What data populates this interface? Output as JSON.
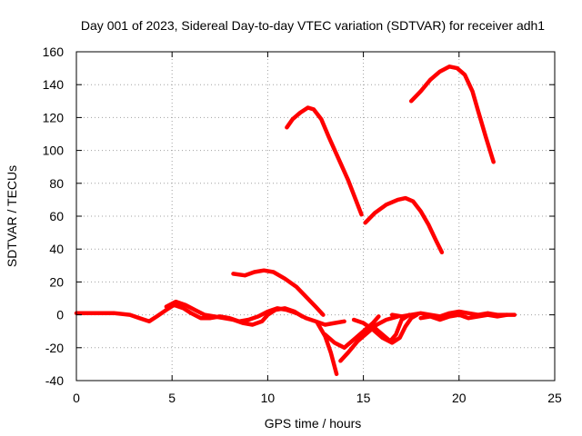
{
  "chart_data": {
    "type": "line",
    "title": "Day 001 of 2023, Sidereal Day-to-day VTEC variation (SDTVAR) for receiver adh1",
    "xlabel": "GPS time / hours",
    "ylabel": "SDTVAR / TECUs",
    "xlim": [
      0,
      25
    ],
    "ylim": [
      -40,
      160
    ],
    "xticks": [
      0,
      5,
      10,
      15,
      20,
      25
    ],
    "yticks": [
      -40,
      -20,
      0,
      20,
      40,
      60,
      80,
      100,
      120,
      140,
      160
    ],
    "grid": true,
    "color": "#ff0000",
    "series": [
      {
        "name": "arc-high-1",
        "points": [
          [
            11.0,
            114
          ],
          [
            11.3,
            119
          ],
          [
            11.7,
            123
          ],
          [
            12.1,
            126
          ],
          [
            12.4,
            125
          ],
          [
            12.8,
            119
          ],
          [
            13.2,
            108
          ],
          [
            13.7,
            95
          ],
          [
            14.2,
            82
          ],
          [
            14.6,
            70
          ],
          [
            14.9,
            61
          ]
        ]
      },
      {
        "name": "arc-high-2",
        "points": [
          [
            15.1,
            56
          ],
          [
            15.6,
            62
          ],
          [
            16.2,
            67
          ],
          [
            16.8,
            70
          ],
          [
            17.2,
            71
          ],
          [
            17.6,
            69
          ],
          [
            18.0,
            63
          ],
          [
            18.4,
            55
          ],
          [
            18.8,
            45
          ],
          [
            19.1,
            38
          ]
        ]
      },
      {
        "name": "arc-high-3",
        "points": [
          [
            17.5,
            130
          ],
          [
            18.0,
            136
          ],
          [
            18.5,
            143
          ],
          [
            19.0,
            148
          ],
          [
            19.5,
            151
          ],
          [
            19.9,
            150
          ],
          [
            20.3,
            146
          ],
          [
            20.7,
            136
          ],
          [
            21.0,
            124
          ],
          [
            21.4,
            108
          ],
          [
            21.8,
            93
          ]
        ]
      },
      {
        "name": "arc-mid",
        "points": [
          [
            8.2,
            25
          ],
          [
            8.8,
            24
          ],
          [
            9.3,
            26
          ],
          [
            9.8,
            27
          ],
          [
            10.3,
            26
          ],
          [
            10.9,
            22
          ],
          [
            11.5,
            17
          ],
          [
            12.0,
            11
          ],
          [
            12.5,
            5
          ],
          [
            12.9,
            0
          ]
        ]
      },
      {
        "name": "base-1",
        "points": [
          [
            0.0,
            1
          ],
          [
            1.0,
            1
          ],
          [
            2.0,
            1
          ],
          [
            2.8,
            0
          ],
          [
            3.3,
            -2
          ],
          [
            3.8,
            -4
          ],
          [
            4.2,
            -1
          ],
          [
            4.7,
            3
          ],
          [
            5.1,
            6
          ],
          [
            5.6,
            4
          ],
          [
            6.0,
            1
          ],
          [
            6.5,
            -2
          ],
          [
            7.0,
            -2
          ],
          [
            7.5,
            -1
          ],
          [
            8.0,
            -2
          ],
          [
            8.5,
            -4
          ],
          [
            9.0,
            -3
          ],
          [
            9.5,
            -1
          ],
          [
            10.0,
            2
          ],
          [
            10.5,
            4
          ],
          [
            11.0,
            3
          ],
          [
            11.5,
            1
          ],
          [
            12.0,
            -2
          ],
          [
            12.5,
            -4
          ],
          [
            13.0,
            -6
          ],
          [
            13.5,
            -5
          ],
          [
            14.0,
            -4
          ]
        ]
      },
      {
        "name": "base-2",
        "points": [
          [
            4.7,
            5
          ],
          [
            5.2,
            8
          ],
          [
            5.7,
            6
          ],
          [
            6.2,
            3
          ],
          [
            6.7,
            0
          ],
          [
            7.2,
            -1
          ],
          [
            7.7,
            -2
          ],
          [
            8.2,
            -3
          ],
          [
            8.7,
            -5
          ],
          [
            9.2,
            -6
          ],
          [
            9.7,
            -4
          ],
          [
            10.0,
            0
          ],
          [
            10.4,
            3
          ],
          [
            10.9,
            4
          ],
          [
            11.4,
            2
          ],
          [
            11.8,
            -1
          ]
        ]
      },
      {
        "name": "dip-1",
        "points": [
          [
            12.6,
            -5
          ],
          [
            13.0,
            -13
          ],
          [
            13.3,
            -23
          ],
          [
            13.6,
            -36
          ]
        ]
      },
      {
        "name": "dip-2",
        "points": [
          [
            13.0,
            -12
          ],
          [
            13.5,
            -17
          ],
          [
            14.0,
            -20
          ],
          [
            14.5,
            -15
          ],
          [
            15.0,
            -10
          ],
          [
            15.5,
            -5
          ],
          [
            15.8,
            -1
          ]
        ]
      },
      {
        "name": "dip-3",
        "points": [
          [
            13.8,
            -28
          ],
          [
            14.2,
            -23
          ],
          [
            14.7,
            -16
          ],
          [
            15.2,
            -11
          ],
          [
            15.7,
            -6
          ],
          [
            16.2,
            -3
          ],
          [
            16.8,
            -1
          ]
        ]
      },
      {
        "name": "dip-4",
        "points": [
          [
            14.5,
            -3
          ],
          [
            15.0,
            -5
          ],
          [
            15.5,
            -9
          ],
          [
            16.0,
            -14
          ],
          [
            16.5,
            -17
          ],
          [
            16.9,
            -14
          ],
          [
            17.2,
            -7
          ],
          [
            17.5,
            -2
          ],
          [
            17.8,
            0
          ]
        ]
      },
      {
        "name": "dip-5",
        "points": [
          [
            15.5,
            -7
          ],
          [
            16.0,
            -12
          ],
          [
            16.4,
            -16
          ],
          [
            16.7,
            -12
          ],
          [
            17.0,
            -3
          ],
          [
            17.4,
            0
          ]
        ]
      },
      {
        "name": "base-3",
        "points": [
          [
            16.5,
            0
          ],
          [
            17.0,
            -1
          ],
          [
            17.5,
            0
          ],
          [
            18.0,
            1
          ],
          [
            18.5,
            0
          ],
          [
            19.0,
            -1
          ],
          [
            19.5,
            1
          ],
          [
            20.0,
            2
          ],
          [
            20.5,
            1
          ],
          [
            21.0,
            0
          ],
          [
            21.5,
            1
          ],
          [
            22.0,
            0
          ],
          [
            22.5,
            0
          ],
          [
            22.9,
            0
          ]
        ]
      },
      {
        "name": "base-4",
        "points": [
          [
            18.0,
            -2
          ],
          [
            18.5,
            -1
          ],
          [
            19.0,
            -3
          ],
          [
            19.5,
            -1
          ],
          [
            20.0,
            0
          ],
          [
            20.5,
            -2
          ],
          [
            21.0,
            -1
          ],
          [
            21.5,
            0
          ],
          [
            22.0,
            -1
          ],
          [
            22.5,
            0
          ]
        ]
      }
    ]
  }
}
